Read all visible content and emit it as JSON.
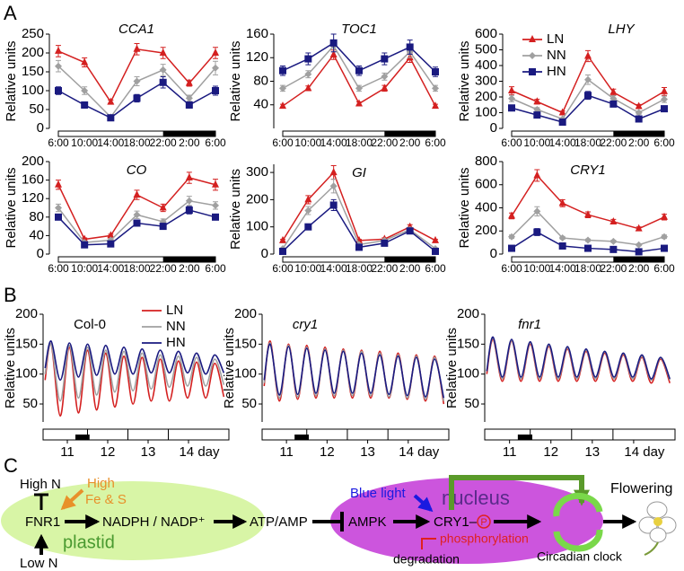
{
  "panel_labels": [
    "A",
    "B",
    "C"
  ],
  "chart_data": [
    {
      "type": "line",
      "title": "CCA1",
      "title_italic": true,
      "y_label": "Relative units",
      "categories": [
        "6:00",
        "10:00",
        "14:00",
        "18:00",
        "22:00",
        "2:00",
        "6:00"
      ],
      "ylim": [
        0,
        250
      ],
      "yticks": [
        0,
        50,
        100,
        150,
        200,
        250
      ],
      "series": [
        {
          "color": "#d42020",
          "marker": "triangle",
          "values": [
            205,
            175,
            70,
            210,
            200,
            120,
            200
          ],
          "errors": [
            15,
            12,
            5,
            15,
            15,
            8,
            15
          ]
        },
        {
          "color": "#a0a0a0",
          "marker": "diamond",
          "values": [
            165,
            100,
            30,
            125,
            155,
            80,
            160
          ],
          "errors": [
            15,
            10,
            4,
            12,
            15,
            8,
            18
          ]
        },
        {
          "color": "#1a1a80",
          "marker": "square",
          "values": [
            100,
            62,
            28,
            80,
            122,
            62,
            100
          ],
          "errors": [
            10,
            8,
            3,
            10,
            15,
            8,
            12
          ]
        }
      ]
    },
    {
      "type": "line",
      "title": "TOC1",
      "title_italic": true,
      "y_label": "Relative units",
      "categories": [
        "6:00",
        "10:00",
        "14:00",
        "18:00",
        "22:00",
        "2:00",
        "6:00"
      ],
      "ylim": [
        0,
        160
      ],
      "yticks": [
        40,
        80,
        120,
        160
      ],
      "series": [
        {
          "color": "#d42020",
          "marker": "triangle",
          "values": [
            38,
            68,
            125,
            42,
            68,
            120,
            38
          ],
          "errors": [
            3,
            4,
            8,
            3,
            5,
            8,
            3
          ]
        },
        {
          "color": "#a0a0a0",
          "marker": "diamond",
          "values": [
            68,
            92,
            140,
            68,
            88,
            130,
            68
          ],
          "errors": [
            5,
            6,
            10,
            5,
            6,
            10,
            5
          ]
        },
        {
          "color": "#1a1a80",
          "marker": "square",
          "values": [
            98,
            118,
            145,
            98,
            118,
            138,
            96
          ],
          "errors": [
            8,
            10,
            15,
            8,
            10,
            12,
            8
          ]
        }
      ]
    },
    {
      "type": "line",
      "title": "LHY",
      "title_italic": true,
      "y_label": "Relative units",
      "legend": "upper left",
      "categories": [
        "6:00",
        "10:00",
        "14:00",
        "18:00",
        "22:00",
        "2:00",
        "6:00"
      ],
      "ylim": [
        0,
        600
      ],
      "yticks": [
        0,
        100,
        200,
        300,
        400,
        500,
        600
      ],
      "series": [
        {
          "name": "LN",
          "color": "#d42020",
          "marker": "triangle",
          "values": [
            240,
            170,
            100,
            460,
            230,
            140,
            235
          ],
          "errors": [
            25,
            15,
            10,
            35,
            20,
            12,
            25
          ]
        },
        {
          "name": "NN",
          "color": "#a0a0a0",
          "marker": "diamond",
          "values": [
            190,
            120,
            60,
            310,
            190,
            100,
            185
          ],
          "errors": [
            20,
            12,
            8,
            30,
            18,
            10,
            20
          ]
        },
        {
          "name": "HN",
          "color": "#1a1a80",
          "marker": "square",
          "values": [
            130,
            85,
            40,
            210,
            155,
            60,
            125
          ],
          "errors": [
            12,
            8,
            5,
            25,
            15,
            6,
            12
          ]
        }
      ]
    },
    {
      "type": "line",
      "title": "CO",
      "title_italic": true,
      "y_label": "Relative units",
      "categories": [
        "6:00",
        "10:00",
        "14:00",
        "18:00",
        "22:00",
        "2:00",
        "6:00"
      ],
      "ylim": [
        0,
        200
      ],
      "yticks": [
        0,
        40,
        80,
        120,
        160,
        200
      ],
      "series": [
        {
          "color": "#d42020",
          "marker": "triangle",
          "values": [
            150,
            32,
            40,
            128,
            100,
            165,
            150
          ],
          "errors": [
            10,
            3,
            3,
            10,
            8,
            12,
            12
          ]
        },
        {
          "color": "#a0a0a0",
          "marker": "diamond",
          "values": [
            100,
            25,
            30,
            85,
            70,
            115,
            105
          ],
          "errors": [
            8,
            3,
            3,
            8,
            6,
            10,
            8
          ]
        },
        {
          "color": "#1a1a80",
          "marker": "square",
          "values": [
            80,
            20,
            22,
            67,
            60,
            95,
            80
          ],
          "errors": [
            6,
            2,
            2,
            6,
            5,
            8,
            6
          ]
        }
      ]
    },
    {
      "type": "line",
      "title": "GI",
      "title_italic": true,
      "y_label": "Relative units",
      "categories": [
        "6:00",
        "10:00",
        "14:00",
        "18:00",
        "22:00",
        "2:00",
        "6:00"
      ],
      "ylim": [
        0,
        330
      ],
      "yticks": [
        0,
        100,
        200,
        300
      ],
      "series": [
        {
          "color": "#d42020",
          "marker": "triangle",
          "values": [
            50,
            200,
            300,
            50,
            55,
            100,
            50
          ],
          "errors": [
            4,
            15,
            25,
            4,
            5,
            8,
            4
          ]
        },
        {
          "color": "#a0a0a0",
          "marker": "diamond",
          "values": [
            20,
            160,
            250,
            35,
            50,
            90,
            20
          ],
          "errors": [
            2,
            15,
            25,
            3,
            4,
            8,
            2
          ]
        },
        {
          "color": "#1a1a80",
          "marker": "square",
          "values": [
            10,
            100,
            180,
            25,
            40,
            85,
            10
          ],
          "errors": [
            1,
            10,
            20,
            2,
            3,
            8,
            1
          ]
        }
      ]
    },
    {
      "type": "line",
      "title": "CRY1",
      "title_italic": true,
      "y_label": "Relative units",
      "categories": [
        "6:00",
        "10:00",
        "14:00",
        "18:00",
        "22:00",
        "2:00",
        "6:00"
      ],
      "ylim": [
        0,
        800
      ],
      "yticks": [
        0,
        200,
        400,
        600,
        800
      ],
      "series": [
        {
          "color": "#d42020",
          "marker": "triangle",
          "values": [
            330,
            680,
            440,
            340,
            280,
            220,
            320
          ],
          "errors": [
            25,
            50,
            30,
            25,
            20,
            15,
            25
          ]
        },
        {
          "color": "#a0a0a0",
          "marker": "diamond",
          "values": [
            150,
            370,
            140,
            120,
            110,
            80,
            150
          ],
          "errors": [
            15,
            40,
            12,
            10,
            10,
            8,
            15
          ]
        },
        {
          "color": "#1a1a80",
          "marker": "square",
          "values": [
            50,
            190,
            70,
            50,
            40,
            20,
            50
          ],
          "errors": [
            5,
            30,
            8,
            5,
            4,
            3,
            5
          ]
        }
      ]
    },
    {
      "type": "curve",
      "title": "Col-0",
      "title_italic": false,
      "y_label": "Relative units",
      "legend": "upper center",
      "x": [
        10.45,
        10.6,
        10.825,
        11.05,
        11.275,
        11.5,
        11.725,
        11.95,
        12.175,
        12.4,
        12.625,
        12.85,
        13.075,
        13.3,
        13.525,
        13.75,
        13.975,
        14.2,
        14.425,
        14.65,
        14.875
      ],
      "xlim": [
        10.4,
        15.0
      ],
      "xticks": [
        11,
        12,
        13,
        {
          "value": 14,
          "label": "14 day"
        }
      ],
      "ylim": [
        20,
        200
      ],
      "yticks": [
        50,
        100,
        150,
        200
      ],
      "series": [
        {
          "name": "LN",
          "color": "#d42020",
          "values": [
            90,
            150,
            30,
            145,
            35,
            140,
            40,
            135,
            45,
            130,
            50,
            128,
            55,
            125,
            55,
            122,
            60,
            120,
            60,
            118,
            62
          ]
        },
        {
          "name": "NN",
          "color": "#a0a0a0",
          "values": [
            100,
            150,
            55,
            148,
            60,
            145,
            65,
            140,
            70,
            138,
            72,
            135,
            75,
            132,
            78,
            130,
            80,
            128,
            80,
            125,
            82
          ]
        },
        {
          "name": "HN",
          "color": "#1a1a80",
          "values": [
            110,
            155,
            90,
            152,
            95,
            150,
            98,
            148,
            100,
            145,
            100,
            142,
            102,
            140,
            102,
            138,
            102,
            135,
            100,
            132,
            102
          ]
        }
      ]
    },
    {
      "type": "curve",
      "title": "cry1",
      "title_italic": true,
      "y_label": "Relative units",
      "x": [
        10.45,
        10.6,
        10.825,
        11.05,
        11.275,
        11.5,
        11.725,
        11.95,
        12.175,
        12.4,
        12.625,
        12.85,
        13.075,
        13.3,
        13.525,
        13.75,
        13.975,
        14.2,
        14.425,
        14.65,
        14.875
      ],
      "xlim": [
        10.4,
        15.0
      ],
      "xticks": [
        11,
        12,
        13,
        {
          "value": 14,
          "label": "14 day"
        }
      ],
      "ylim": [
        20,
        200
      ],
      "yticks": [
        50,
        100,
        150,
        200
      ],
      "series": [
        {
          "color": "#d42020",
          "values": [
            80,
            155,
            55,
            150,
            58,
            148,
            60,
            145,
            60,
            142,
            60,
            140,
            60,
            138,
            60,
            135,
            58,
            132,
            55,
            130,
            50
          ]
        },
        {
          "color": "#a0a0a0",
          "values": [
            85,
            152,
            60,
            148,
            62,
            145,
            64,
            142,
            64,
            140,
            64,
            138,
            64,
            135,
            62,
            132,
            60,
            130,
            58,
            128,
            55
          ]
        },
        {
          "color": "#1a1a80",
          "values": [
            90,
            150,
            65,
            146,
            66,
            143,
            68,
            140,
            68,
            138,
            68,
            135,
            68,
            132,
            66,
            130,
            64,
            128,
            62,
            125,
            60
          ]
        }
      ]
    },
    {
      "type": "curve",
      "title": "fnr1",
      "title_italic": true,
      "y_label": "Relative units",
      "x": [
        10.45,
        10.6,
        10.825,
        11.05,
        11.275,
        11.5,
        11.725,
        11.95,
        12.175,
        12.4,
        12.625,
        12.85,
        13.075,
        13.3,
        13.525,
        13.75,
        13.975,
        14.2,
        14.425,
        14.65,
        14.875
      ],
      "xlim": [
        10.4,
        15.0
      ],
      "xticks": [
        11,
        12,
        13,
        {
          "value": 14,
          "label": "14 day"
        }
      ],
      "ylim": [
        20,
        200
      ],
      "yticks": [
        50,
        100,
        150,
        200
      ],
      "series": [
        {
          "color": "#d42020",
          "values": [
            100,
            158,
            88,
            155,
            88,
            150,
            88,
            146,
            88,
            142,
            88,
            138,
            88,
            135,
            88,
            132,
            88,
            128,
            85,
            125,
            85
          ]
        },
        {
          "color": "#a0a0a0",
          "values": [
            105,
            160,
            92,
            156,
            92,
            152,
            92,
            148,
            92,
            144,
            92,
            140,
            92,
            137,
            92,
            134,
            92,
            130,
            90,
            127,
            90
          ]
        },
        {
          "color": "#1a1a80",
          "values": [
            105,
            162,
            95,
            158,
            95,
            154,
            95,
            150,
            95,
            146,
            95,
            142,
            95,
            138,
            95,
            135,
            95,
            132,
            92,
            128,
            92
          ]
        }
      ]
    }
  ],
  "diagram": {
    "high_n": "High N",
    "high": "High",
    "fe_s": "Fe & S",
    "fnr1": "FNR1",
    "plastid": "plastid",
    "low_n": "Low N",
    "nadph": "NADPH / NADP⁺",
    "atp_amp": "ATP/AMP",
    "ampk": "AMPK",
    "blue_light": "Blue light",
    "nucleus": "nucleus",
    "cry1": "CRY1–",
    "p": "P",
    "phosphorylation": "phosphorylation",
    "degradation": "degradation",
    "circadian_clock": "Circadian clock",
    "flowering": "Flowering"
  }
}
